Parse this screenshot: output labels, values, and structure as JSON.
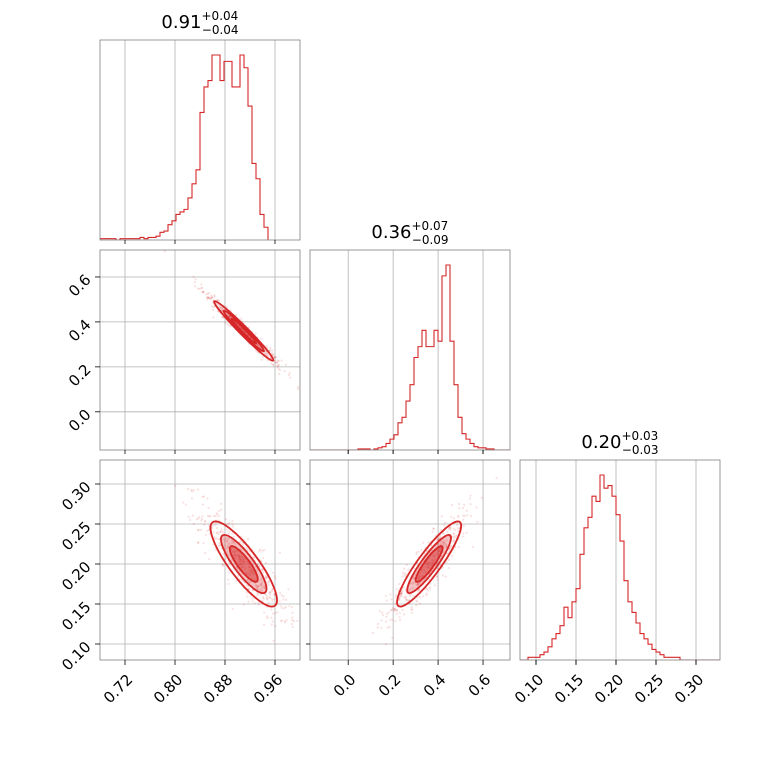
{
  "chart_data": {
    "type": "corner",
    "color": "#d62728",
    "grid": true,
    "params": [
      {
        "title": {
          "median": "0.91",
          "plus": "+0.04",
          "minus": "−0.04"
        },
        "range": [
          0.68,
          1.0
        ],
        "ticks": [
          0.72,
          0.8,
          0.88,
          0.96
        ],
        "tick_labels": [
          "0.72",
          "0.80",
          "0.88",
          "0.96"
        ],
        "hist": {
          "edges_start": 0.68,
          "bin_width": 0.0064,
          "counts": [
            1,
            1,
            1,
            1,
            0,
            1,
            1,
            1,
            1,
            1,
            2,
            1,
            2,
            2,
            3,
            6,
            7,
            12,
            15,
            20,
            22,
            24,
            33,
            44,
            55,
            100,
            120,
            125,
            145,
            145,
            125,
            140,
            140,
            120,
            120,
            145,
            135,
            105,
            60,
            48,
            20,
            10
          ]
        }
      },
      {
        "title": {
          "median": "0.36",
          "plus": "+0.07",
          "minus": "−0.09"
        },
        "range": [
          -0.17,
          0.72
        ],
        "ticks": [
          0.0,
          0.2,
          0.4,
          0.6
        ],
        "tick_labels": [
          "0.0",
          "0.2",
          "0.4",
          "0.6"
        ],
        "hist": {
          "edges_start": -0.17,
          "bin_width": 0.0178,
          "counts": [
            0,
            0,
            0,
            0,
            0,
            0,
            0,
            0,
            0,
            0,
            0,
            0,
            1,
            1,
            1,
            0,
            1,
            2,
            3,
            6,
            10,
            14,
            25,
            30,
            45,
            60,
            85,
            95,
            110,
            95,
            95,
            110,
            100,
            160,
            170,
            100,
            60,
            30,
            15,
            10,
            6,
            3,
            2,
            2,
            1,
            1,
            0,
            0,
            0,
            0
          ]
        }
      },
      {
        "title": {
          "median": "0.20",
          "plus": "+0.03",
          "minus": "−0.03"
        },
        "range": [
          0.08,
          0.33
        ],
        "ticks": [
          0.1,
          0.15,
          0.2,
          0.25,
          0.3
        ],
        "tick_labels": [
          "0.10",
          "0.15",
          "0.20",
          "0.25",
          "0.30"
        ],
        "hist": {
          "edges_start": 0.08,
          "bin_width": 0.005,
          "counts": [
            0,
            0,
            1,
            1,
            1,
            2,
            3,
            5,
            8,
            10,
            13,
            20,
            16,
            22,
            27,
            40,
            50,
            54,
            62,
            60,
            70,
            65,
            66,
            62,
            55,
            45,
            30,
            22,
            18,
            14,
            10,
            8,
            6,
            4,
            3,
            2,
            1,
            1,
            1,
            1,
            0,
            0,
            0,
            0,
            0,
            0,
            0,
            0,
            0,
            0
          ]
        }
      }
    ],
    "pairs": [
      {
        "x": 0,
        "y": 1,
        "rho": -0.98,
        "center": [
          0.91,
          0.36
        ],
        "sd": [
          0.025,
          0.07
        ]
      },
      {
        "x": 0,
        "y": 2,
        "rho": -0.85,
        "center": [
          0.91,
          0.2
        ],
        "sd": [
          0.028,
          0.028
        ]
      },
      {
        "x": 1,
        "y": 2,
        "rho": 0.9,
        "center": [
          0.36,
          0.2
        ],
        "sd": [
          0.075,
          0.028
        ]
      }
    ]
  }
}
